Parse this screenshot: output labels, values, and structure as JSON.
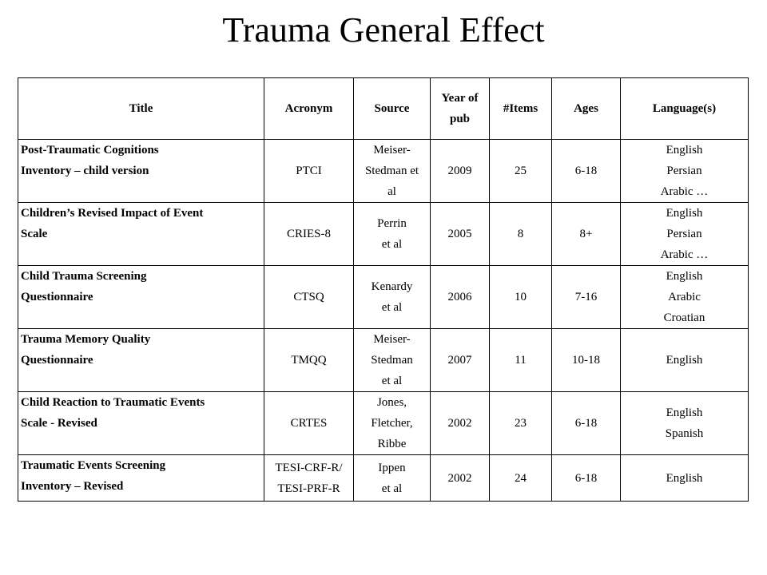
{
  "slide_title": "Trauma General Effect",
  "headers": [
    "Title",
    "Acronym",
    "Source",
    "Year of pub",
    "#Items",
    "Ages",
    "Language(s)"
  ],
  "header_lines": {
    "year": [
      "Year of",
      "pub"
    ]
  },
  "rows": [
    {
      "title_lines": [
        "Post-Traumatic Cognitions",
        "Inventory – child version"
      ],
      "acronym_lines": [
        "PTCI"
      ],
      "source_lines": [
        "Meiser-",
        "Stedman et",
        "al"
      ],
      "year": "2009",
      "items": "25",
      "ages": "6-18",
      "languages": [
        "English",
        "Persian",
        "Arabic …"
      ]
    },
    {
      "title_lines": [
        "Children’s Revised Impact of Event",
        "Scale"
      ],
      "acronym_lines": [
        "CRIES-8"
      ],
      "source_lines": [
        "Perrin",
        "et al"
      ],
      "year": "2005",
      "items": "8",
      "ages": "8+",
      "languages": [
        "English",
        "Persian",
        "Arabic …"
      ]
    },
    {
      "title_lines": [
        "Child Trauma Screening",
        "Questionnaire"
      ],
      "acronym_lines": [
        "CTSQ"
      ],
      "source_lines": [
        "Kenardy",
        "et al"
      ],
      "year": "2006",
      "items": "10",
      "ages": "7-16",
      "languages": [
        "English",
        "Arabic",
        "Croatian"
      ]
    },
    {
      "title_lines": [
        "Trauma Memory Quality",
        "Questionnaire"
      ],
      "acronym_lines": [
        "TMQQ"
      ],
      "source_lines": [
        "Meiser-",
        "Stedman",
        "et al"
      ],
      "year": "2007",
      "items": "11",
      "ages": "10-18",
      "languages": [
        "English"
      ]
    },
    {
      "title_lines": [
        "Child Reaction to Traumatic Events",
        "Scale - Revised"
      ],
      "acronym_lines": [
        "CRTES"
      ],
      "source_lines": [
        "Jones,",
        "Fletcher,",
        "Ribbe"
      ],
      "year": "2002",
      "items": "23",
      "ages": "6-18",
      "languages": [
        "English",
        "Spanish"
      ]
    },
    {
      "title_lines": [
        "Traumatic Events Screening",
        "Inventory – Revised"
      ],
      "acronym_lines": [
        "TESI-CRF-R/",
        "TESI-PRF-R"
      ],
      "source_lines": [
        "Ippen",
        "et al"
      ],
      "year": "2002",
      "items": "24",
      "ages": "6-18",
      "languages": [
        "English"
      ]
    }
  ]
}
